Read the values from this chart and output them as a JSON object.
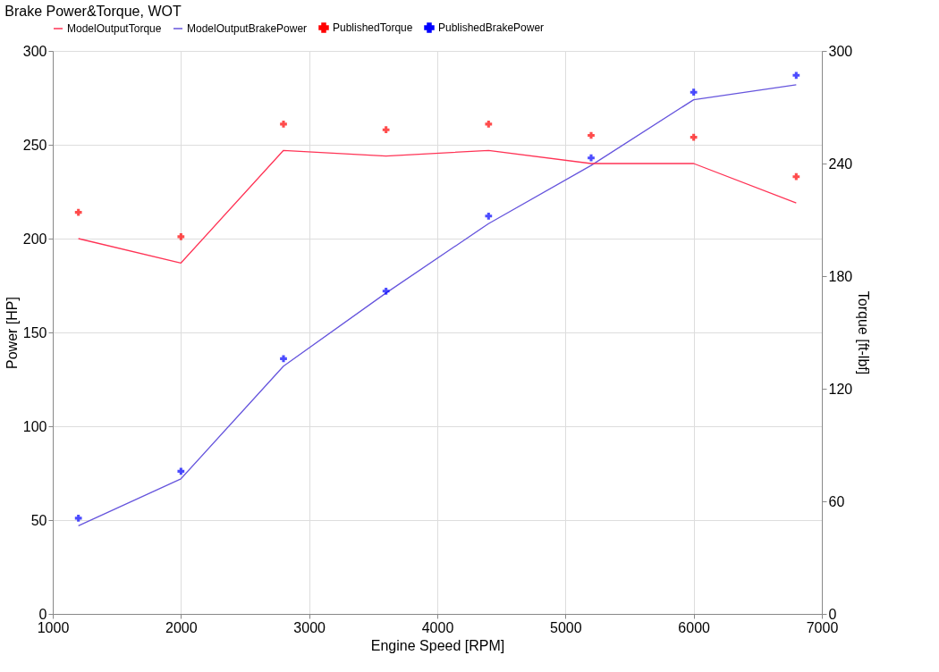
{
  "chart_data": {
    "type": "line",
    "title": "Brake Power&Torque, WOT",
    "xlabel": "Engine Speed [RPM]",
    "ylabel": "Power [HP]",
    "y2label": "Torque [ft-lbf]",
    "xlim": [
      1000,
      7000
    ],
    "xticks": [
      1000,
      2000,
      3000,
      4000,
      5000,
      6000,
      7000
    ],
    "ylim": [
      0,
      300
    ],
    "yticks": [
      0,
      50,
      100,
      150,
      200,
      250,
      300
    ],
    "y2lim": [
      0,
      300
    ],
    "y2ticks": [
      0,
      60,
      120,
      180,
      240,
      300
    ],
    "grid": true,
    "legend": "top",
    "x": [
      1200,
      2000,
      2800,
      3600,
      4400,
      5200,
      6000,
      6800
    ],
    "series": [
      {
        "name": "ModelOutputTorque",
        "axis": "y2",
        "color": "#ff3355",
        "marker": "none",
        "values": [
          200,
          187,
          247,
          244,
          247,
          240,
          240,
          219
        ]
      },
      {
        "name": "ModelOutputBrakePower",
        "axis": "y",
        "color": "#6655dd",
        "marker": "none",
        "values": [
          47,
          72,
          132,
          171,
          208,
          239,
          274,
          282
        ]
      },
      {
        "name": "PublishedTorque",
        "type": "scatter",
        "axis": "y2",
        "color": "#ff0000",
        "marker": "cross",
        "values": [
          214,
          201,
          261,
          258,
          261,
          255,
          254,
          233
        ]
      },
      {
        "name": "PublishedBrakePower",
        "type": "scatter",
        "axis": "y",
        "color": "#0000ff",
        "marker": "cross",
        "values": [
          51,
          76,
          136,
          172,
          212,
          243,
          278,
          287
        ]
      }
    ]
  }
}
